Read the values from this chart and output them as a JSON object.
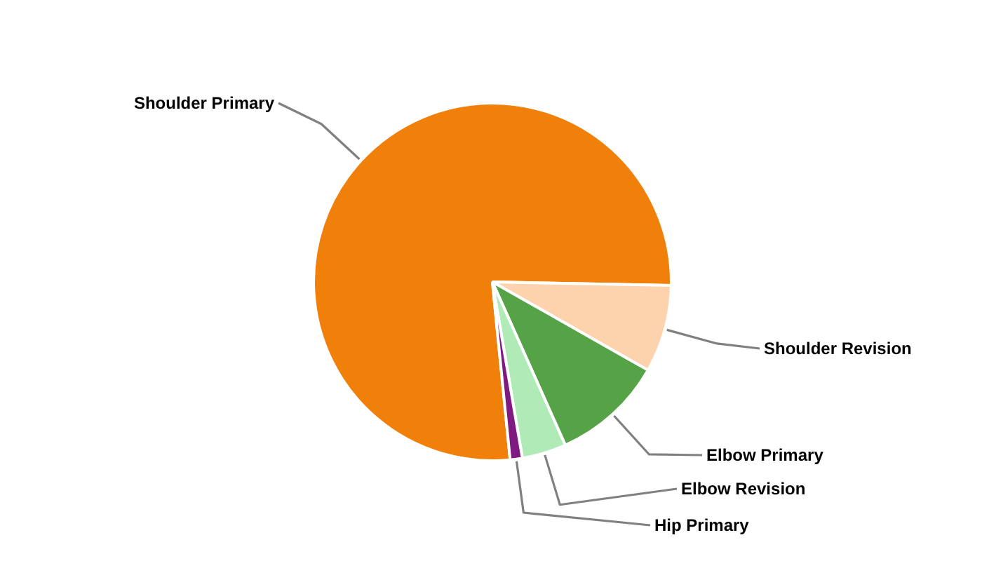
{
  "chart_data": {
    "type": "pie",
    "categories": [
      "Shoulder Primary",
      "Shoulder Revision",
      "Elbow Primary",
      "Elbow Revision",
      "Hip Primary"
    ],
    "values": [
      76.9,
      7.9,
      10.1,
      4.0,
      1.1
    ],
    "colors": [
      "#f0800a",
      "#fdd3ae",
      "#55a346",
      "#afeab7",
      "#7f1a80"
    ]
  }
}
